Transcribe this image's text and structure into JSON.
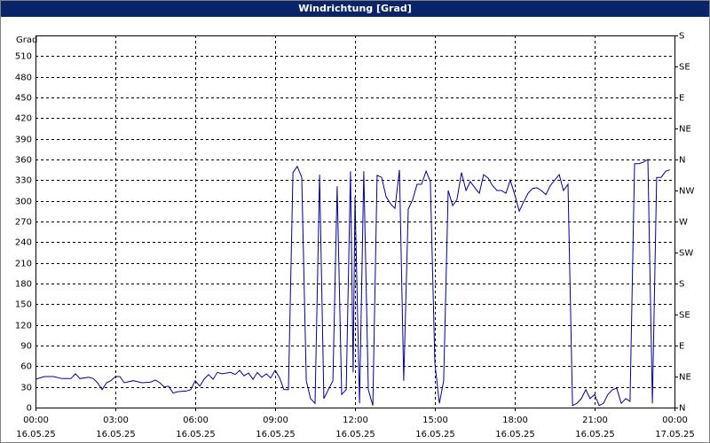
{
  "chart_data": {
    "type": "line",
    "title": "Windrichtung [Grad]",
    "y_label": "Grad",
    "xlim": [
      0,
      24
    ],
    "xticks": [
      {
        "value": 0,
        "label": "00:00",
        "date": "16.05.25"
      },
      {
        "value": 3,
        "label": "03:00",
        "date": "16.05.25"
      },
      {
        "value": 6,
        "label": "06:00",
        "date": "16.05.25"
      },
      {
        "value": 9,
        "label": "09:00",
        "date": "16.05.25"
      },
      {
        "value": 12,
        "label": "12:00",
        "date": "16.05.25"
      },
      {
        "value": 15,
        "label": "15:00",
        "date": "16.05.25"
      },
      {
        "value": 18,
        "label": "18:00",
        "date": "16.05.25"
      },
      {
        "value": 21,
        "label": "21:00",
        "date": "16.05.25"
      },
      {
        "value": 24,
        "label": "00:00",
        "date": "17.05.25"
      }
    ],
    "ylim": [
      0,
      540
    ],
    "yticks": [
      0,
      30,
      60,
      90,
      120,
      150,
      180,
      210,
      240,
      270,
      300,
      330,
      360,
      390,
      420,
      450,
      480,
      510
    ],
    "y2lim": [
      0,
      540
    ],
    "y2ticks": [
      {
        "value": 0,
        "label": "N"
      },
      {
        "value": 45,
        "label": "NE"
      },
      {
        "value": 90,
        "label": "E"
      },
      {
        "value": 135,
        "label": "SE"
      },
      {
        "value": 180,
        "label": "S"
      },
      {
        "value": 225,
        "label": "SW"
      },
      {
        "value": 270,
        "label": "W"
      },
      {
        "value": 315,
        "label": "NW"
      },
      {
        "value": 360,
        "label": "N"
      },
      {
        "value": 405,
        "label": "NE"
      },
      {
        "value": 450,
        "label": "E"
      },
      {
        "value": 495,
        "label": "SE"
      },
      {
        "value": 540,
        "label": "S"
      }
    ],
    "grid": true,
    "x": [
      0,
      0.33,
      0.67,
      1,
      1.33,
      1.5,
      1.67,
      2,
      2.17,
      2.33,
      2.5,
      2.67,
      2.83,
      3,
      3.17,
      3.33,
      3.67,
      4,
      4.33,
      4.5,
      4.67,
      4.83,
      5,
      5.17,
      5.33,
      5.67,
      5.83,
      6,
      6.17,
      6.33,
      6.5,
      6.67,
      6.83,
      7,
      7.33,
      7.5,
      7.67,
      7.83,
      8,
      8.17,
      8.33,
      8.5,
      8.67,
      8.83,
      9,
      9.17,
      9.33,
      9.5,
      9.67,
      9.83,
      10,
      10.17,
      10.33,
      10.5,
      10.67,
      10.83,
      11,
      11.17,
      11.33,
      11.5,
      11.67,
      11.83,
      11.93,
      12,
      12.17,
      12.33,
      12.5,
      12.67,
      12.83,
      13,
      13.17,
      13.33,
      13.5,
      13.67,
      13.83,
      14,
      14.17,
      14.33,
      14.5,
      14.67,
      14.83,
      15,
      15.17,
      15.33,
      15.5,
      15.67,
      15.83,
      16,
      16.17,
      16.33,
      16.5,
      16.67,
      16.83,
      17,
      17.17,
      17.33,
      17.5,
      17.67,
      17.83,
      18,
      18.17,
      18.33,
      18.5,
      18.67,
      18.83,
      19,
      19.17,
      19.33,
      19.67,
      19.83,
      20,
      20.17,
      20.33,
      20.5,
      20.67,
      20.83,
      21,
      21.17,
      21.33,
      21.5,
      21.67,
      21.83,
      22,
      22.17,
      22.33,
      22.5,
      22.67,
      22.83,
      23,
      23.17,
      23.33,
      23.5,
      23.67,
      23.83
    ],
    "series": [
      {
        "color": "#0000a0",
        "values": [
          41,
          45,
          45,
          42,
          42,
          49,
          42,
          44,
          42,
          36,
          26,
          36,
          39,
          45,
          45,
          36,
          39,
          36,
          37,
          40,
          36,
          30,
          31,
          21,
          23,
          24,
          26,
          39,
          31,
          41,
          48,
          41,
          51,
          49,
          51,
          48,
          54,
          46,
          50,
          41,
          51,
          44,
          49,
          43,
          54,
          43,
          26,
          26,
          341,
          350,
          334,
          39,
          13,
          6,
          338,
          13,
          26,
          39,
          321,
          19,
          26,
          343,
          51,
          306,
          6,
          343,
          26,
          3,
          337,
          334,
          306,
          296,
          289,
          345,
          39,
          288,
          302,
          324,
          324,
          343,
          328,
          64,
          6,
          39,
          315,
          293,
          302,
          341,
          315,
          328,
          319,
          311,
          338,
          333,
          322,
          315,
          315,
          311,
          330,
          309,
          285,
          298,
          311,
          318,
          319,
          315,
          309,
          322,
          338,
          315,
          324,
          3,
          6,
          13,
          26,
          13,
          19,
          3,
          6,
          19,
          26,
          28,
          6,
          13,
          9,
          354,
          354,
          356,
          360,
          6,
          334,
          334,
          343,
          345
        ]
      }
    ]
  }
}
